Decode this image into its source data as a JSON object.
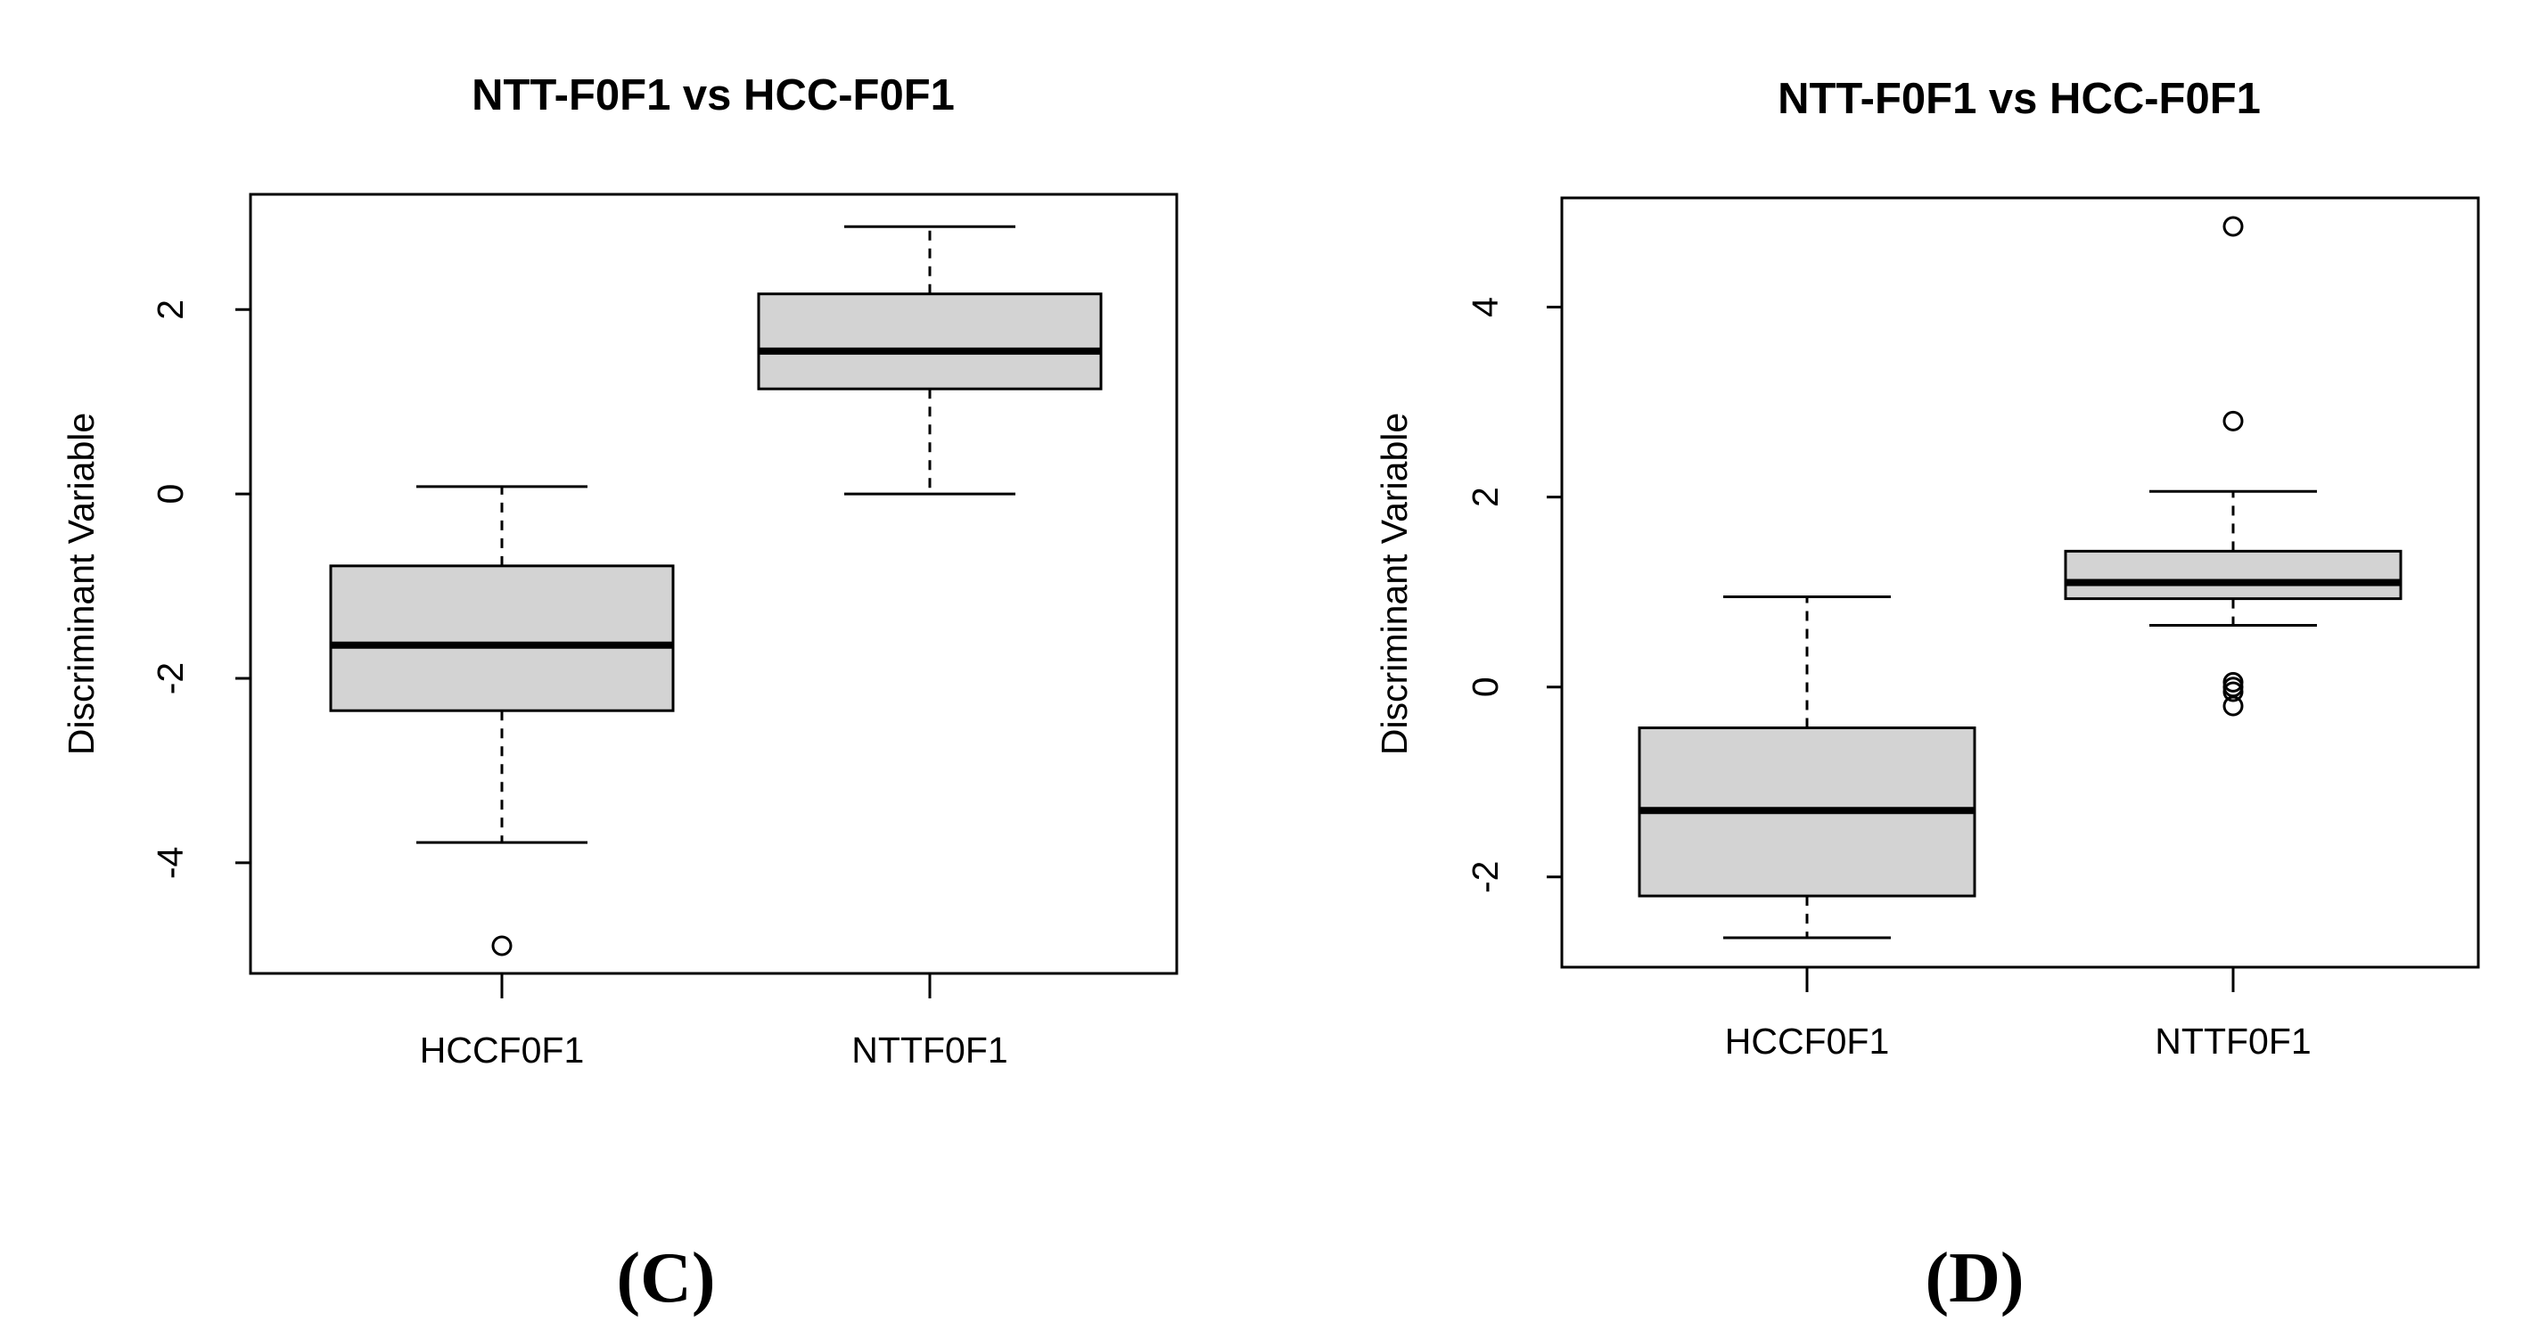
{
  "figure": {
    "panels": [
      "(C)",
      "(D)"
    ]
  },
  "chart_data": [
    {
      "type": "boxplot",
      "panel_label": "(C)",
      "title": "NTT-F0F1 vs HCC-F0F1",
      "xlabel": "",
      "ylabel": "Discriminant Variable",
      "ylim": [
        -5.2,
        3.25
      ],
      "yticks": [
        -4,
        -2,
        0,
        2
      ],
      "categories": [
        "HCCF0F1",
        "NTTF0F1"
      ],
      "boxes": [
        {
          "name": "HCCF0F1",
          "whisker_low": -3.78,
          "q1": -2.35,
          "median": -1.64,
          "q3": -0.78,
          "whisker_high": 0.08,
          "outliers": [
            -4.9
          ]
        },
        {
          "name": "NTTF0F1",
          "whisker_low": 0.0,
          "q1": 1.14,
          "median": 1.55,
          "q3": 2.17,
          "whisker_high": 2.9,
          "outliers": []
        }
      ]
    },
    {
      "type": "boxplot",
      "panel_label": "(D)",
      "title": "NTT-F0F1 vs HCC-F0F1",
      "xlabel": "",
      "ylabel": "Discriminant Variable",
      "ylim": [
        -2.95,
        5.15
      ],
      "yticks": [
        -2,
        0,
        2,
        4
      ],
      "categories": [
        "HCCF0F1",
        "NTTF0F1"
      ],
      "boxes": [
        {
          "name": "HCCF0F1",
          "whisker_low": -2.64,
          "q1": -2.2,
          "median": -1.3,
          "q3": -0.43,
          "whisker_high": 0.95,
          "outliers": []
        },
        {
          "name": "NTTF0F1",
          "whisker_low": 0.65,
          "q1": 0.93,
          "median": 1.1,
          "q3": 1.43,
          "whisker_high": 2.06,
          "outliers": [
            4.85,
            2.8,
            0.05,
            0.0,
            -0.05,
            -0.2
          ]
        }
      ]
    }
  ]
}
